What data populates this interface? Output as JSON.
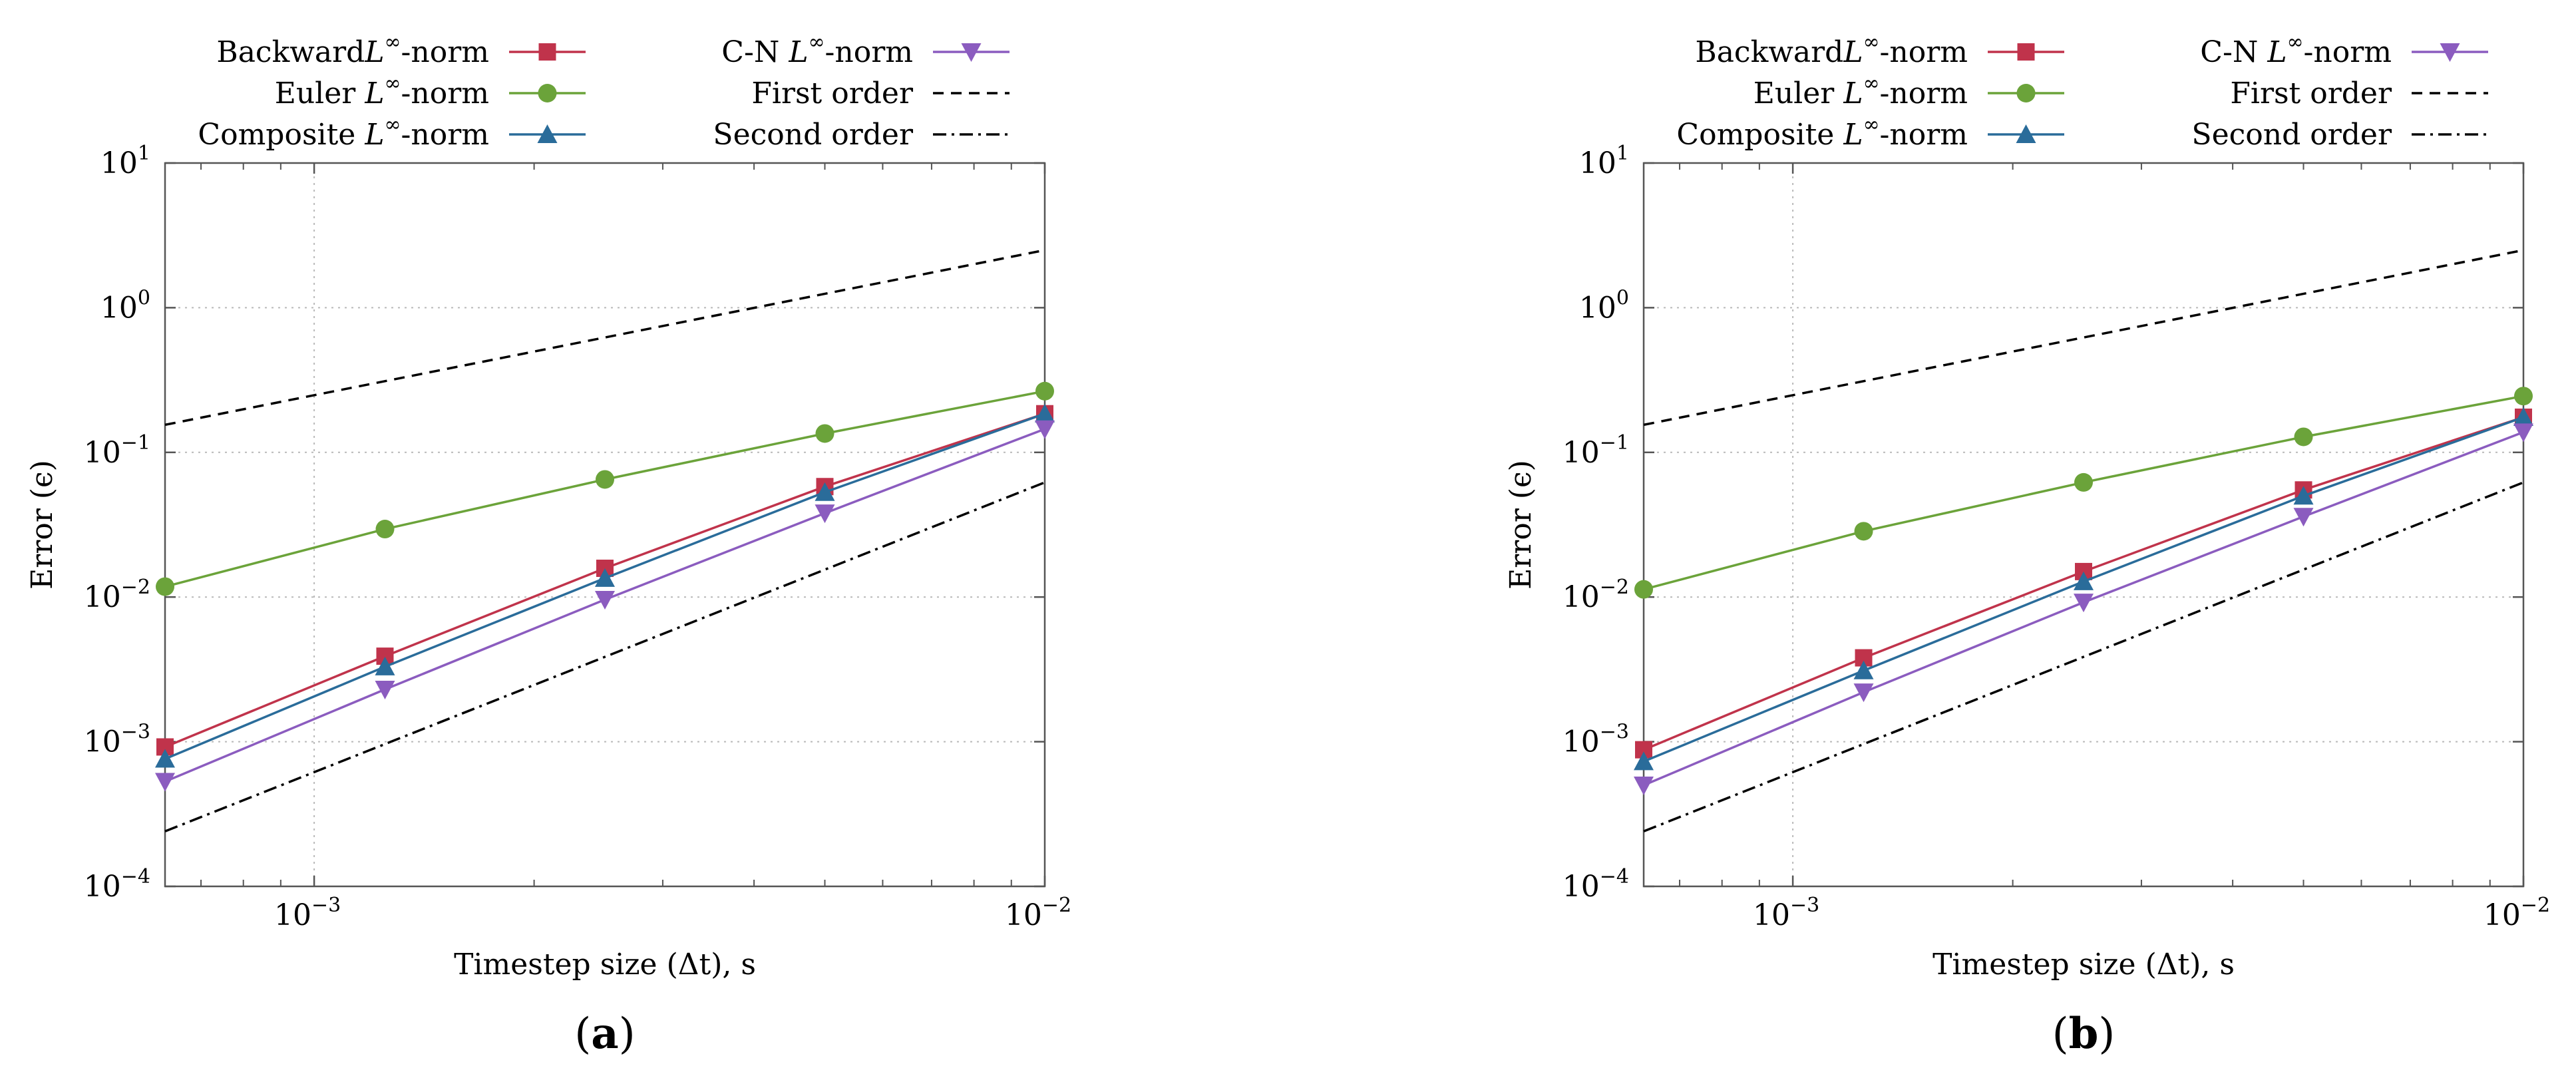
{
  "chart_data": [
    {
      "panel_label": "a",
      "type": "line",
      "log_axes": true,
      "xlabel": "Timestep size (Δt), s",
      "ylabel": "Error (ϵ)",
      "xlim": [
        0.000625,
        0.01
      ],
      "ylim": [
        0.0001,
        10
      ],
      "grid": true,
      "legend_position": "top",
      "x_ticks": [
        {
          "value": 0.001,
          "base": "10",
          "exp": "−3"
        },
        {
          "value": 0.01,
          "base": "10",
          "exp": "−2"
        }
      ],
      "y_ticks": [
        {
          "value": 10,
          "base": "10",
          "exp": "1"
        },
        {
          "value": 1,
          "base": "10",
          "exp": "0"
        },
        {
          "value": 0.1,
          "base": "10",
          "exp": "−1"
        },
        {
          "value": 0.01,
          "base": "10",
          "exp": "−2"
        },
        {
          "value": 0.001,
          "base": "10",
          "exp": "−3"
        },
        {
          "value": 0.0001,
          "base": "10",
          "exp": "−4"
        }
      ],
      "series": [
        {
          "name": "Backward",
          "label_main": "Backward",
          "label_sup": "∞",
          "label_tail": "-norm",
          "label_sep": false,
          "color": "#c0334b",
          "marker": "square",
          "x": [
            0.000625,
            0.00125,
            0.0025,
            0.005,
            0.01
          ],
          "y": [
            0.00092,
            0.0039,
            0.0158,
            0.058,
            0.185
          ]
        },
        {
          "name": "Euler",
          "label_main": "Euler",
          "label_sup": "∞",
          "label_tail": "-norm",
          "label_sep": true,
          "color": "#6ba33a",
          "marker": "circle",
          "x": [
            0.000625,
            0.00125,
            0.0025,
            0.005,
            0.01
          ],
          "y": [
            0.0118,
            0.0295,
            0.065,
            0.135,
            0.265
          ]
        },
        {
          "name": "Composite",
          "label_main": "Composite",
          "label_sup": "∞",
          "label_tail": "-norm",
          "label_sep": true,
          "color": "#2a6c9a",
          "marker": "triangle-up",
          "x": [
            0.000625,
            0.00125,
            0.0025,
            0.005,
            0.01
          ],
          "y": [
            0.00076,
            0.0033,
            0.0135,
            0.053,
            0.185
          ]
        },
        {
          "name": "C-N",
          "label_main": "C-N",
          "label_sup": "∞",
          "label_tail": "-norm",
          "label_sep": true,
          "color": "#8b5cbf",
          "marker": "triangle-down",
          "x": [
            0.000625,
            0.00125,
            0.0025,
            0.005,
            0.01
          ],
          "y": [
            0.00053,
            0.0023,
            0.0096,
            0.038,
            0.145
          ]
        },
        {
          "name": "First order",
          "label_main": "First order",
          "label_sup": "",
          "label_tail": "",
          "label_sep": false,
          "color": "#000000",
          "marker": "none",
          "style": "dashed",
          "x": [
            0.000625,
            0.01
          ],
          "y": [
            0.155,
            2.5
          ]
        },
        {
          "name": "Second order",
          "label_main": "Second order",
          "label_sup": "",
          "label_tail": "",
          "label_sep": false,
          "color": "#000000",
          "marker": "none",
          "style": "dashdot",
          "x": [
            0.000625,
            0.01
          ],
          "y": [
            0.00024,
            0.062
          ]
        }
      ]
    },
    {
      "panel_label": "b",
      "type": "line",
      "log_axes": true,
      "xlabel": "Timestep size (Δt), s",
      "ylabel": "Error (ϵ)",
      "xlim": [
        0.000625,
        0.01
      ],
      "ylim": [
        0.0001,
        10
      ],
      "grid": true,
      "legend_position": "top",
      "x_ticks": [
        {
          "value": 0.001,
          "base": "10",
          "exp": "−3"
        },
        {
          "value": 0.01,
          "base": "10",
          "exp": "−2"
        }
      ],
      "y_ticks": [
        {
          "value": 10,
          "base": "10",
          "exp": "1"
        },
        {
          "value": 1,
          "base": "10",
          "exp": "0"
        },
        {
          "value": 0.1,
          "base": "10",
          "exp": "−1"
        },
        {
          "value": 0.01,
          "base": "10",
          "exp": "−2"
        },
        {
          "value": 0.001,
          "base": "10",
          "exp": "−3"
        },
        {
          "value": 0.0001,
          "base": "10",
          "exp": "−4"
        }
      ],
      "series": [
        {
          "name": "Backward",
          "label_main": "Backward",
          "label_sup": "∞",
          "label_tail": "-norm",
          "label_sep": false,
          "color": "#c0334b",
          "marker": "square",
          "x": [
            0.000625,
            0.00125,
            0.0025,
            0.005,
            0.01
          ],
          "y": [
            0.00088,
            0.0038,
            0.015,
            0.055,
            0.175
          ]
        },
        {
          "name": "Euler",
          "label_main": "Euler",
          "label_sup": "∞",
          "label_tail": "-norm",
          "label_sep": true,
          "color": "#6ba33a",
          "marker": "circle",
          "x": [
            0.000625,
            0.00125,
            0.0025,
            0.005,
            0.01
          ],
          "y": [
            0.0113,
            0.0285,
            0.062,
            0.128,
            0.245
          ]
        },
        {
          "name": "Composite",
          "label_main": "Composite",
          "label_sup": "∞",
          "label_tail": "-norm",
          "label_sep": true,
          "color": "#2a6c9a",
          "marker": "triangle-up",
          "x": [
            0.000625,
            0.00125,
            0.0025,
            0.005,
            0.01
          ],
          "y": [
            0.00073,
            0.0031,
            0.0128,
            0.05,
            0.175
          ]
        },
        {
          "name": "C-N",
          "label_main": "C-N",
          "label_sup": "∞",
          "label_tail": "-norm",
          "label_sep": true,
          "color": "#8b5cbf",
          "marker": "triangle-down",
          "x": [
            0.000625,
            0.00125,
            0.0025,
            0.005,
            0.01
          ],
          "y": [
            0.0005,
            0.0022,
            0.0092,
            0.036,
            0.138
          ]
        },
        {
          "name": "First order",
          "label_main": "First order",
          "label_sup": "",
          "label_tail": "",
          "label_sep": false,
          "color": "#000000",
          "marker": "none",
          "style": "dashed",
          "x": [
            0.000625,
            0.01
          ],
          "y": [
            0.155,
            2.5
          ]
        },
        {
          "name": "Second order",
          "label_main": "Second order",
          "label_sup": "",
          "label_tail": "",
          "label_sep": false,
          "color": "#000000",
          "marker": "none",
          "style": "dashdot",
          "x": [
            0.000625,
            0.01
          ],
          "y": [
            0.00024,
            0.062
          ]
        }
      ]
    }
  ]
}
